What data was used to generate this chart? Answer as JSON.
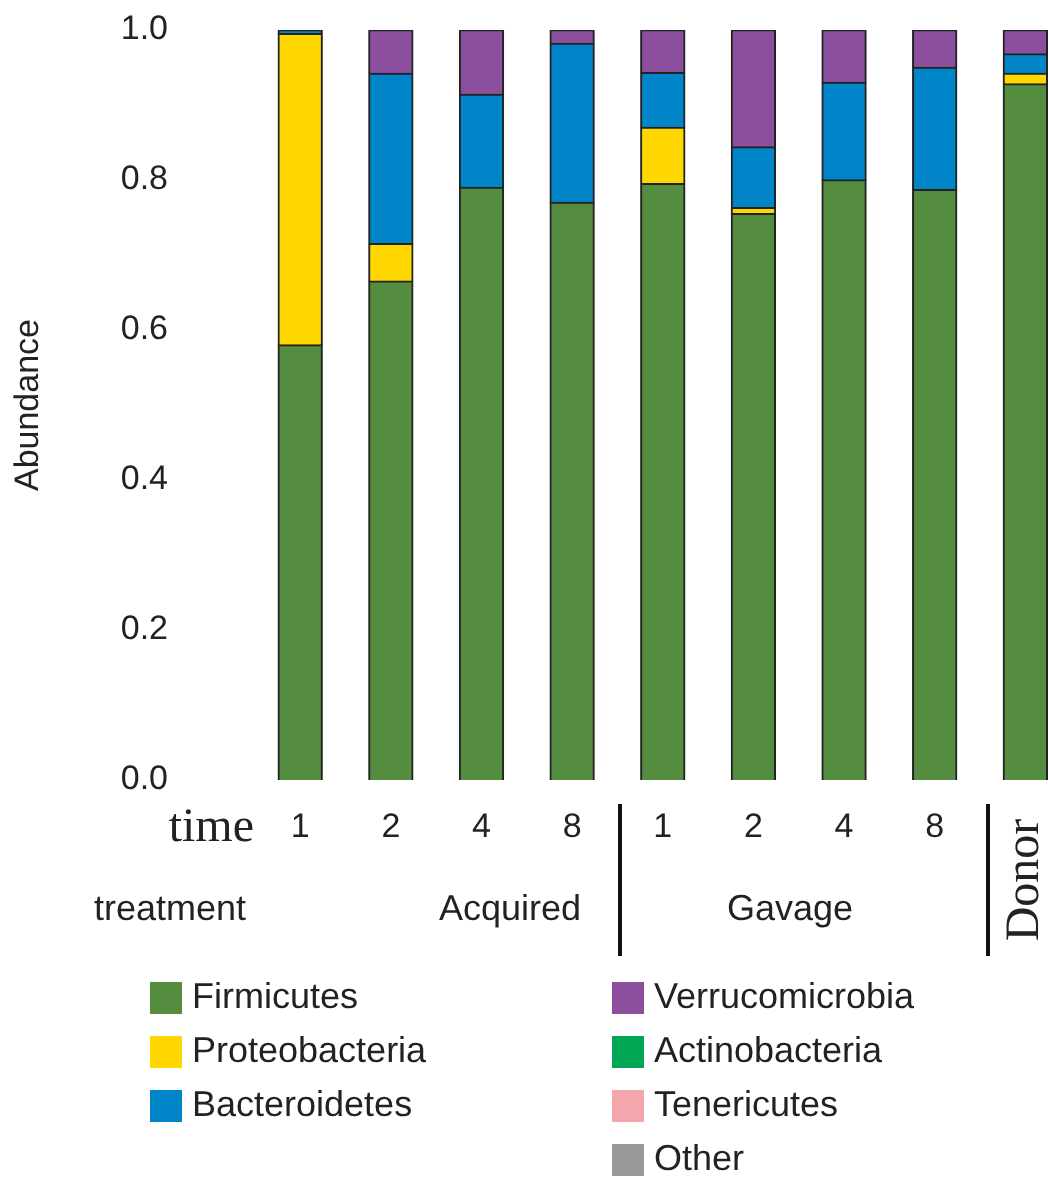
{
  "chart_data": {
    "type": "bar",
    "stacked": true,
    "ylabel": "Abundance",
    "xlabel": "time",
    "categories": [
      "1",
      "2",
      "4",
      "8",
      "1",
      "2",
      "4",
      "8",
      "Donor"
    ],
    "ylim": [
      0,
      1
    ],
    "yticks": [
      {
        "value": 0,
        "label": "0.0"
      },
      {
        "value": 0.2,
        "label": "0.2"
      },
      {
        "value": 0.4,
        "label": "0.4"
      },
      {
        "value": 0.6,
        "label": "0.6"
      },
      {
        "value": 0.8,
        "label": "0.8"
      },
      {
        "value": 1,
        "label": "1.0"
      }
    ],
    "grid": false,
    "legend": "bottom",
    "annotations": [
      "treatment",
      "Acquired",
      "Gavage"
    ],
    "series": [
      {
        "name": "Firmicutes",
        "color": "#548c40",
        "values": [
          0.58,
          0.665,
          0.79,
          0.77,
          0.795,
          0.755,
          0.8,
          0.787,
          0.928
        ]
      },
      {
        "name": "Proteobacteria",
        "color": "#ffd700",
        "values": [
          0.415,
          0.05,
          null,
          null,
          0.075,
          0.008,
          null,
          null,
          0.014
        ]
      },
      {
        "name": "Bacteroidetes",
        "color": "#0085c8",
        "values": [
          0.005,
          0.227,
          0.124,
          0.212,
          0.073,
          0.081,
          0.13,
          0.163,
          0.026
        ]
      },
      {
        "name": "Verrucomicrobia",
        "color": "#8b4f9e",
        "values": [
          null,
          0.058,
          0.086,
          0.018,
          0.057,
          0.156,
          0.07,
          0.05,
          0.032
        ]
      },
      {
        "name": "Actinobacteria",
        "color": "#00a651",
        "values": [
          null,
          null,
          null,
          null,
          null,
          null,
          null,
          null,
          null
        ]
      },
      {
        "name": "Tenericutes",
        "color": "#f4a6ad",
        "values": [
          null,
          null,
          null,
          null,
          null,
          null,
          null,
          null,
          null
        ]
      },
      {
        "name": "Other",
        "color": "#999999",
        "values": [
          null,
          null,
          null,
          null,
          null,
          null,
          null,
          null,
          null
        ]
      }
    ]
  }
}
